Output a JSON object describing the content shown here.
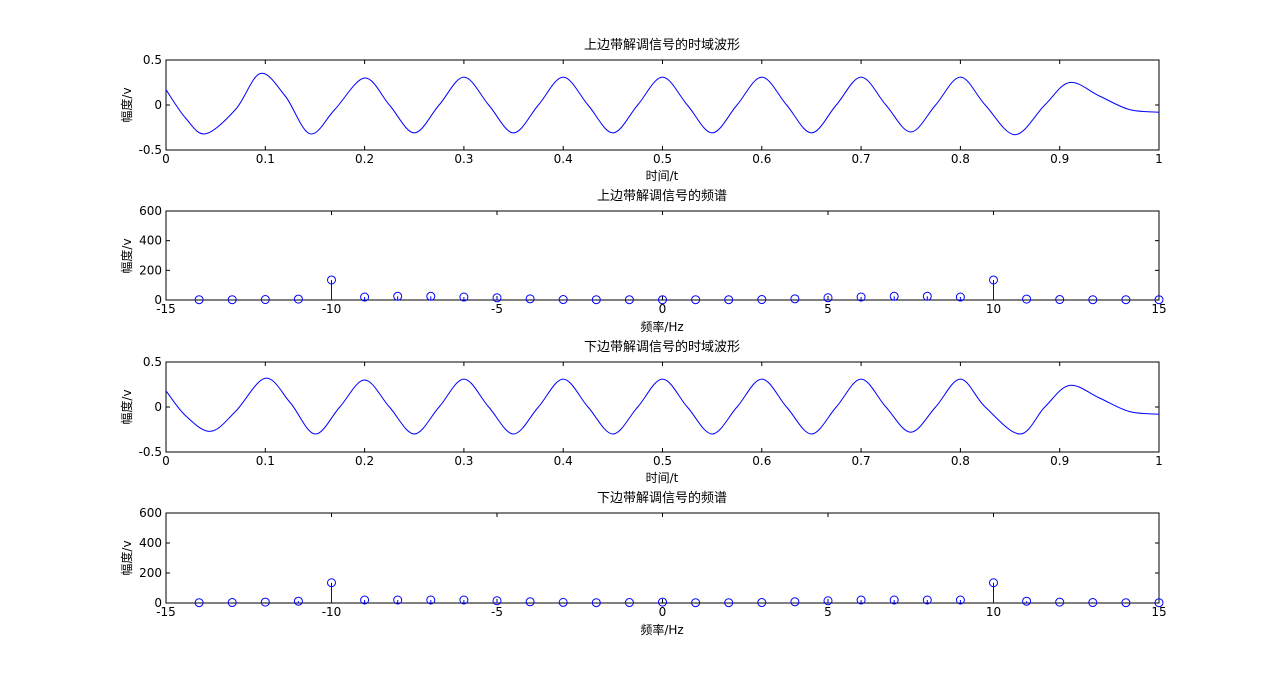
{
  "colors": {
    "series": "#0000ff",
    "axes": "#000000",
    "background": "#ffffff"
  },
  "chart_data": [
    {
      "type": "line",
      "title": "上边带解调信号的时域波形",
      "xlabel": "时间/t",
      "ylabel": "幅度/v",
      "xlim": [
        0,
        1
      ],
      "ylim": [
        -0.5,
        0.5
      ],
      "xticks": [
        0,
        0.1,
        0.2,
        0.3,
        0.4,
        0.5,
        0.6,
        0.7,
        0.8,
        0.9,
        1
      ],
      "xtick_labels": [
        "0",
        "0.1",
        "0.2",
        "0.3",
        "0.4",
        "0.5",
        "0.6",
        "0.7",
        "0.8",
        "0.9",
        "1"
      ],
      "yticks": [
        -0.5,
        0,
        0.5
      ],
      "ytick_labels": [
        "-0.5",
        "0",
        "0.5"
      ],
      "grid": false,
      "x": [
        0,
        0.02,
        0.04,
        0.07,
        0.095,
        0.12,
        0.145,
        0.17,
        0.2,
        0.225,
        0.25,
        0.275,
        0.3,
        0.325,
        0.35,
        0.375,
        0.4,
        0.425,
        0.45,
        0.475,
        0.5,
        0.525,
        0.55,
        0.575,
        0.6,
        0.625,
        0.65,
        0.675,
        0.7,
        0.725,
        0.75,
        0.775,
        0.8,
        0.825,
        0.855,
        0.885,
        0.91,
        0.94,
        0.97,
        1
      ],
      "y": [
        0.17,
        -0.15,
        -0.32,
        -0.05,
        0.35,
        0.1,
        -0.32,
        -0.05,
        0.3,
        0.0,
        -0.31,
        0.0,
        0.31,
        0.0,
        -0.31,
        0.0,
        0.31,
        0.0,
        -0.31,
        0.0,
        0.31,
        0.0,
        -0.31,
        0.0,
        0.31,
        0.0,
        -0.31,
        0.0,
        0.31,
        0.0,
        -0.3,
        0.0,
        0.31,
        0.0,
        -0.33,
        0.0,
        0.25,
        0.1,
        -0.05,
        -0.08
      ]
    },
    {
      "type": "stem",
      "title": "上边带解调信号的频谱",
      "xlabel": "频率/Hz",
      "ylabel": "幅度/v",
      "xlim": [
        -15,
        15
      ],
      "ylim": [
        0,
        600
      ],
      "xticks": [
        -15,
        -10,
        -5,
        0,
        5,
        10,
        15
      ],
      "xtick_labels": [
        "-15",
        "-10",
        "-5",
        "0",
        "5",
        "10",
        "15"
      ],
      "yticks": [
        0,
        200,
        400,
        600
      ],
      "ytick_labels": [
        "0",
        "200",
        "400",
        "600"
      ],
      "grid": false,
      "x": [
        -14,
        -13,
        -12,
        -11,
        -10,
        -9,
        -8,
        -7,
        -6,
        -5,
        -4,
        -3,
        -2,
        -1,
        0,
        1,
        2,
        3,
        4,
        5,
        6,
        7,
        8,
        9,
        10,
        11,
        12,
        13,
        14,
        15
      ],
      "values": [
        2,
        2,
        3,
        6,
        135,
        20,
        25,
        25,
        20,
        15,
        8,
        3,
        2,
        2,
        2,
        2,
        2,
        3,
        8,
        15,
        20,
        25,
        25,
        20,
        135,
        6,
        3,
        2,
        2,
        2
      ]
    },
    {
      "type": "line",
      "title": "下边带解调信号的时域波形",
      "xlabel": "时间/t",
      "ylabel": "幅度/v",
      "xlim": [
        0,
        1
      ],
      "ylim": [
        -0.5,
        0.5
      ],
      "xticks": [
        0,
        0.1,
        0.2,
        0.3,
        0.4,
        0.5,
        0.6,
        0.7,
        0.8,
        0.9,
        1
      ],
      "xtick_labels": [
        "0",
        "0.1",
        "0.2",
        "0.3",
        "0.4",
        "0.5",
        "0.6",
        "0.7",
        "0.8",
        "0.9",
        "1"
      ],
      "yticks": [
        -0.5,
        0,
        0.5
      ],
      "ytick_labels": [
        "-0.5",
        "0",
        "0.5"
      ],
      "grid": false,
      "x": [
        0,
        0.02,
        0.045,
        0.07,
        0.1,
        0.125,
        0.15,
        0.175,
        0.2,
        0.225,
        0.25,
        0.275,
        0.3,
        0.325,
        0.35,
        0.375,
        0.4,
        0.425,
        0.45,
        0.475,
        0.5,
        0.525,
        0.55,
        0.575,
        0.6,
        0.625,
        0.65,
        0.675,
        0.7,
        0.725,
        0.75,
        0.775,
        0.8,
        0.825,
        0.86,
        0.885,
        0.91,
        0.94,
        0.97,
        1
      ],
      "y": [
        0.18,
        -0.1,
        -0.27,
        -0.05,
        0.32,
        0.05,
        -0.3,
        0.0,
        0.3,
        0.0,
        -0.3,
        0.0,
        0.31,
        0.0,
        -0.3,
        0.0,
        0.31,
        0.0,
        -0.3,
        0.0,
        0.31,
        0.0,
        -0.3,
        0.0,
        0.31,
        0.0,
        -0.3,
        0.0,
        0.31,
        0.0,
        -0.28,
        0.0,
        0.31,
        0.0,
        -0.3,
        0.0,
        0.24,
        0.1,
        -0.05,
        -0.08
      ]
    },
    {
      "type": "stem",
      "title": "下边带解调信号的频谱",
      "xlabel": "频率/Hz",
      "ylabel": "幅度/v",
      "xlim": [
        -15,
        15
      ],
      "ylim": [
        0,
        600
      ],
      "xticks": [
        -15,
        -10,
        -5,
        0,
        5,
        10,
        15
      ],
      "xtick_labels": [
        "-15",
        "-10",
        "-5",
        "0",
        "5",
        "10",
        "15"
      ],
      "yticks": [
        0,
        200,
        400,
        600
      ],
      "ytick_labels": [
        "0",
        "200",
        "400",
        "600"
      ],
      "grid": false,
      "x": [
        -14,
        -13,
        -12,
        -11,
        -10,
        -9,
        -8,
        -7,
        -6,
        -5,
        -4,
        -3,
        -2,
        -1,
        0,
        1,
        2,
        3,
        4,
        5,
        6,
        7,
        8,
        9,
        10,
        11,
        12,
        13,
        14,
        15
      ],
      "values": [
        2,
        3,
        6,
        12,
        135,
        20,
        20,
        20,
        20,
        15,
        8,
        4,
        2,
        3,
        6,
        2,
        2,
        3,
        8,
        15,
        20,
        20,
        20,
        20,
        135,
        12,
        6,
        3,
        2,
        2
      ]
    }
  ]
}
